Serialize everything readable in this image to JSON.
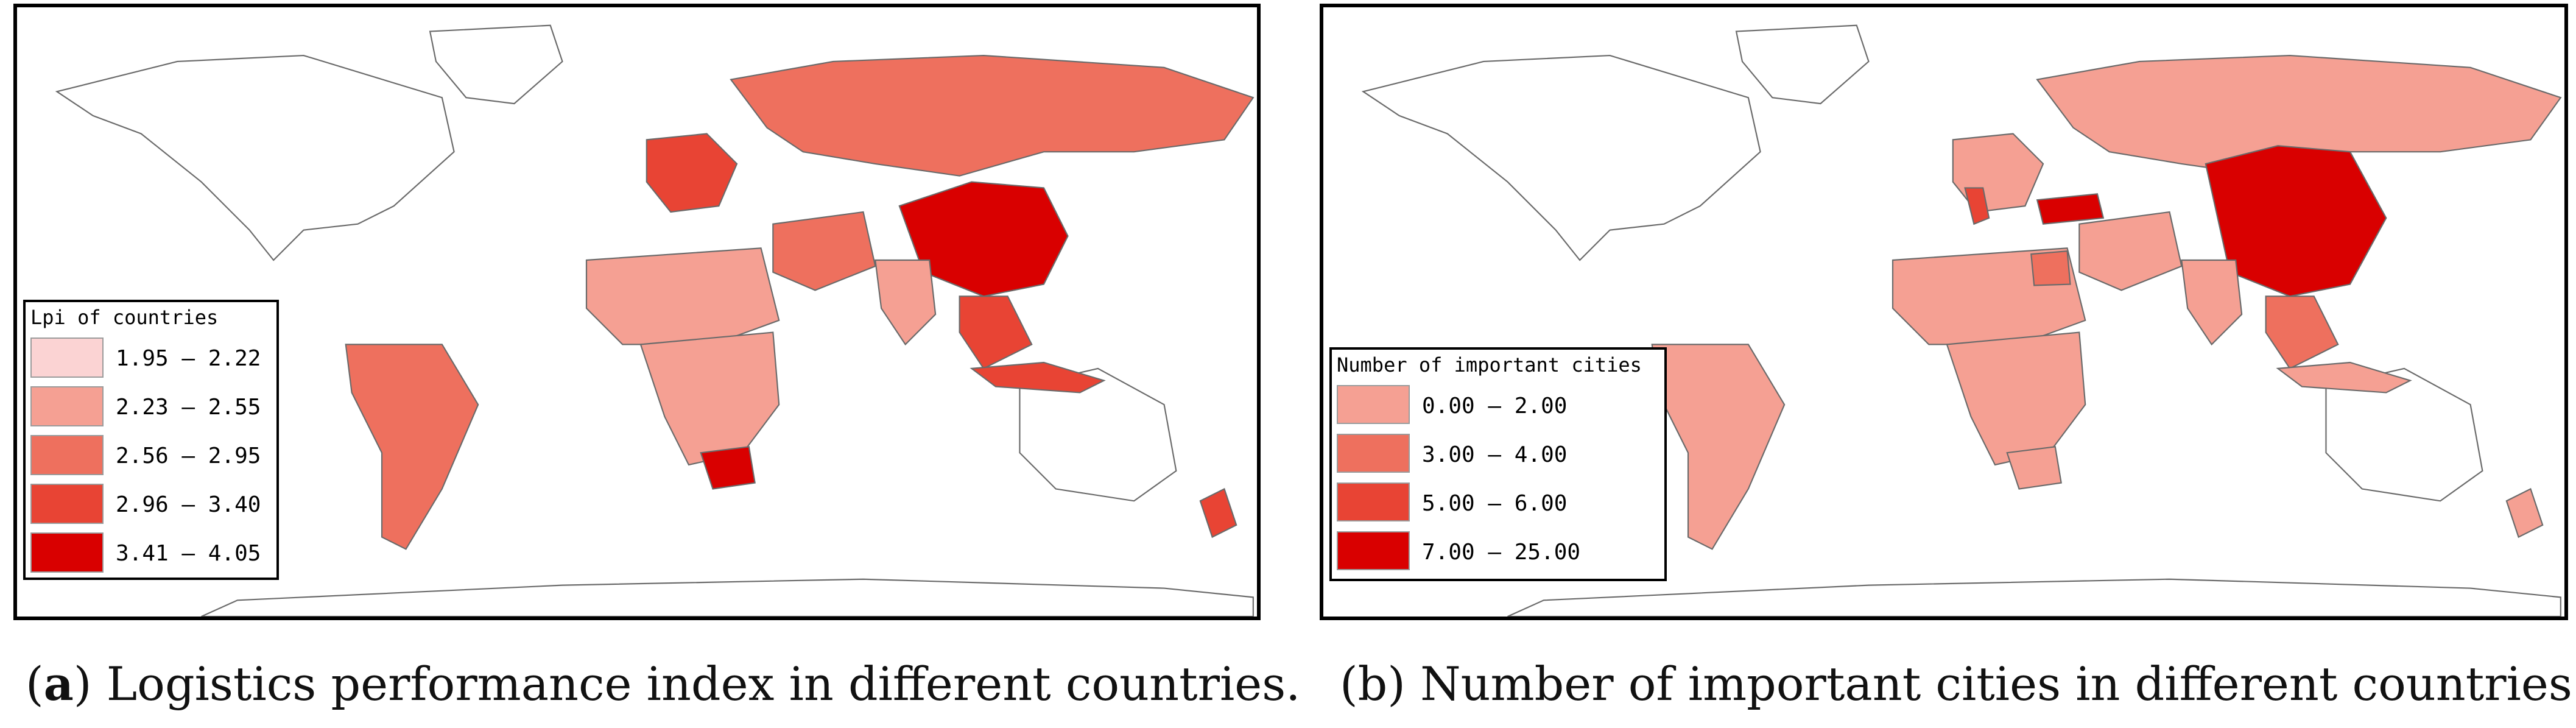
{
  "panels": [
    {
      "id": "a",
      "legend": {
        "title": "Lpi of countries",
        "classes": [
          {
            "range": "1.95 — 2.22",
            "color": "#fbd3d3"
          },
          {
            "range": "2.23 — 2.55",
            "color": "#f5a093"
          },
          {
            "range": "2.56 — 2.95",
            "color": "#ee705e"
          },
          {
            "range": "2.96 — 3.40",
            "color": "#e84434"
          },
          {
            "range": "3.41 — 4.05",
            "color": "#d90000"
          }
        ]
      },
      "caption_letter": "a",
      "caption_rest": ") Logistics performance index in different countries.",
      "caption_open": "("
    },
    {
      "id": "b",
      "legend": {
        "title": "Number of important cities",
        "classes": [
          {
            "range": "0.00 — 2.00",
            "color": "#f5a093"
          },
          {
            "range": "3.00 — 4.00",
            "color": "#ee705e"
          },
          {
            "range": "5.00 — 6.00",
            "color": "#e84434"
          },
          {
            "range": "7.00 — 25.00",
            "color": "#d90000"
          }
        ]
      },
      "caption": "(b) Number of important cities in different countries."
    }
  ],
  "colors": {
    "no_data": "#ffffff",
    "border": "#6a6a6a",
    "coast": "#000000"
  }
}
